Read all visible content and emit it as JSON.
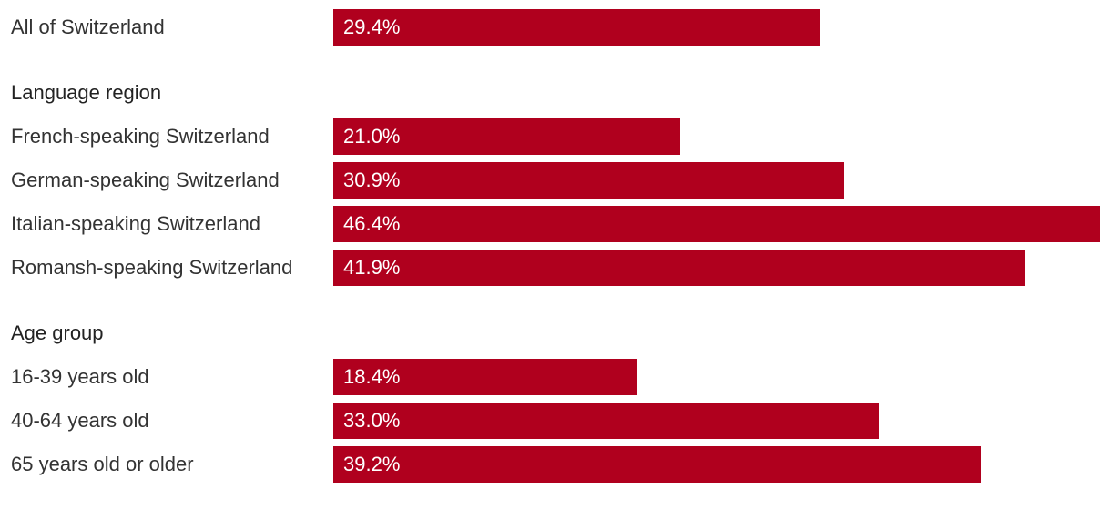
{
  "chart_data": {
    "type": "bar",
    "orientation": "horizontal",
    "value_format": "percent",
    "xlim": [
      0,
      46.4
    ],
    "bar_color": "#b0001e",
    "sections": [
      {
        "heading": "",
        "rows": [
          {
            "label": "All of Switzerland",
            "value": 29.4,
            "value_label": "29.4%"
          }
        ]
      },
      {
        "heading": "Language region",
        "rows": [
          {
            "label": "French-speaking Switzerland",
            "value": 21.0,
            "value_label": "21.0%"
          },
          {
            "label": "German-speaking Switzerland",
            "value": 30.9,
            "value_label": "30.9%"
          },
          {
            "label": "Italian-speaking Switzerland",
            "value": 46.4,
            "value_label": "46.4%"
          },
          {
            "label": "Romansh-speaking Switzerland",
            "value": 41.9,
            "value_label": "41.9%"
          }
        ]
      },
      {
        "heading": "Age group",
        "rows": [
          {
            "label": "16-39 years old",
            "value": 18.4,
            "value_label": "18.4%"
          },
          {
            "label": "40-64 years old",
            "value": 33.0,
            "value_label": "33.0%"
          },
          {
            "label": "65 years old or older",
            "value": 39.2,
            "value_label": "39.2%"
          }
        ]
      }
    ]
  }
}
